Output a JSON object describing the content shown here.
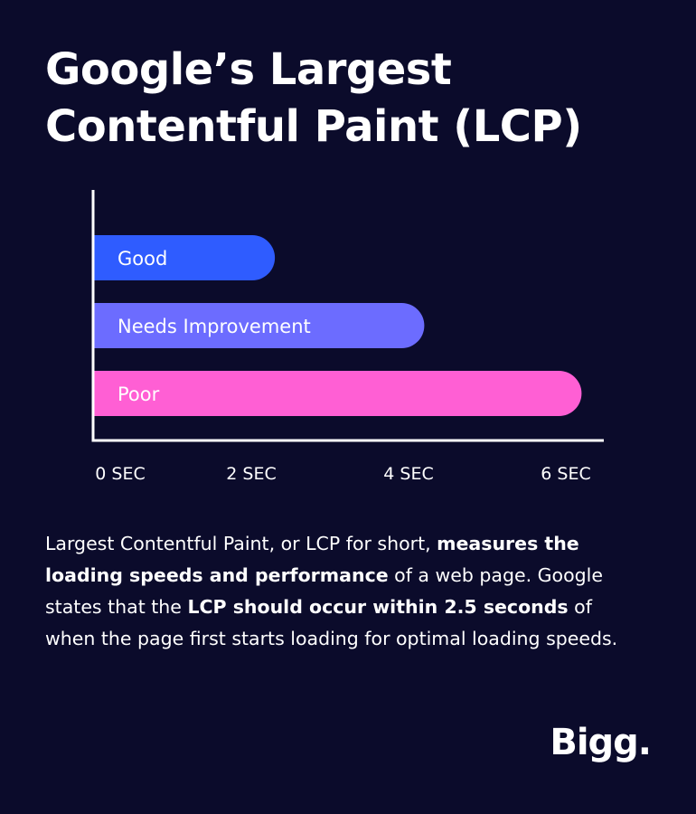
{
  "title": {
    "line1": "Google’s Largest",
    "line2": "Contentful Paint (LCP)"
  },
  "chart_data": {
    "type": "bar",
    "orientation": "horizontal",
    "categories": [
      "Good",
      "Needs Improvement",
      "Poor"
    ],
    "values": [
      2.3,
      4.2,
      6.2
    ],
    "colors": [
      "#2f5cff",
      "#6c6cff",
      "#ff5fd4"
    ],
    "x_ticks": [
      {
        "value": 0,
        "label": "0 SEC"
      },
      {
        "value": 2,
        "label": "2 SEC"
      },
      {
        "value": 4,
        "label": "4 SEC"
      },
      {
        "value": 6,
        "label": "6 SEC"
      }
    ],
    "xlim": [
      0,
      6.5
    ],
    "grid": false,
    "legend": "none"
  },
  "description": {
    "p1": "Largest Contentful Paint, or LCP for short, ",
    "b1": "measures the loading speeds and performance",
    "p2": " of a web page. Google states that the ",
    "b2": "LCP should occur within 2.5 seconds",
    "p3": " of when the page first starts loading for optimal loading speeds."
  },
  "brand": {
    "logo_text": "Bigg."
  }
}
